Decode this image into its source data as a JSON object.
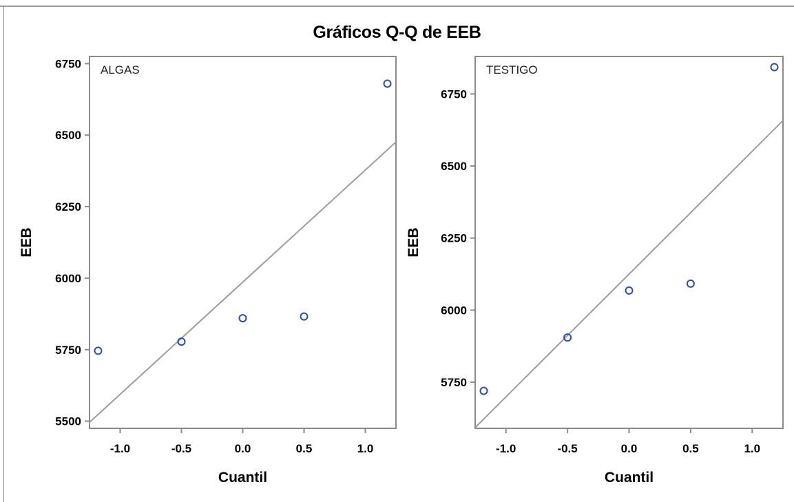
{
  "title": "Gráficos Q-Q de EEB",
  "colors": {
    "marker": "#2a4ea8",
    "reference_line": "#9c9c9c",
    "axes": "#8a8a8a",
    "text": "#000000"
  },
  "chart_data": [
    {
      "type": "scatter",
      "panel_label": "ALGAS",
      "xlabel": "Cuantil",
      "ylabel": "EEB",
      "xlim": [
        -1.25,
        1.25
      ],
      "ylim": [
        5475,
        6775
      ],
      "x_ticks": [
        -1.0,
        -0.5,
        0.0,
        0.5,
        1.0
      ],
      "x_tick_labels": [
        "-1.0",
        "-0.5",
        "0.0",
        "0.5",
        "1.0"
      ],
      "y_ticks": [
        5500,
        5750,
        6000,
        6250,
        6500,
        6750
      ],
      "y_tick_labels": [
        "5500",
        "5750",
        "6000",
        "6250",
        "6500",
        "6750"
      ],
      "points": [
        {
          "x": -1.18,
          "y": 5746
        },
        {
          "x": -0.5,
          "y": 5778
        },
        {
          "x": 0.0,
          "y": 5860
        },
        {
          "x": 0.5,
          "y": 5866
        },
        {
          "x": 1.18,
          "y": 6680
        }
      ],
      "reference_line": {
        "intercept": 5986,
        "slope": 392
      },
      "grid": false,
      "legend": "none"
    },
    {
      "type": "scatter",
      "panel_label": "TESTIGO",
      "xlabel": "Cuantil",
      "ylabel": "EEB",
      "xlim": [
        -1.25,
        1.25
      ],
      "ylim": [
        5590,
        6880
      ],
      "x_ticks": [
        -1.0,
        -0.5,
        0.0,
        0.5,
        1.0
      ],
      "x_tick_labels": [
        "-1.0",
        "-0.5",
        "0.0",
        "0.5",
        "1.0"
      ],
      "y_ticks": [
        5750,
        6000,
        6250,
        6500,
        6750
      ],
      "y_tick_labels": [
        "5750",
        "6000",
        "6250",
        "6500",
        "6750"
      ],
      "points": [
        {
          "x": -1.18,
          "y": 5720
        },
        {
          "x": -0.5,
          "y": 5905
        },
        {
          "x": 0.0,
          "y": 6068
        },
        {
          "x": 0.5,
          "y": 6092
        },
        {
          "x": 1.18,
          "y": 6843
        }
      ],
      "reference_line": {
        "intercept": 6125,
        "slope": 426
      },
      "grid": false,
      "legend": "none"
    }
  ]
}
